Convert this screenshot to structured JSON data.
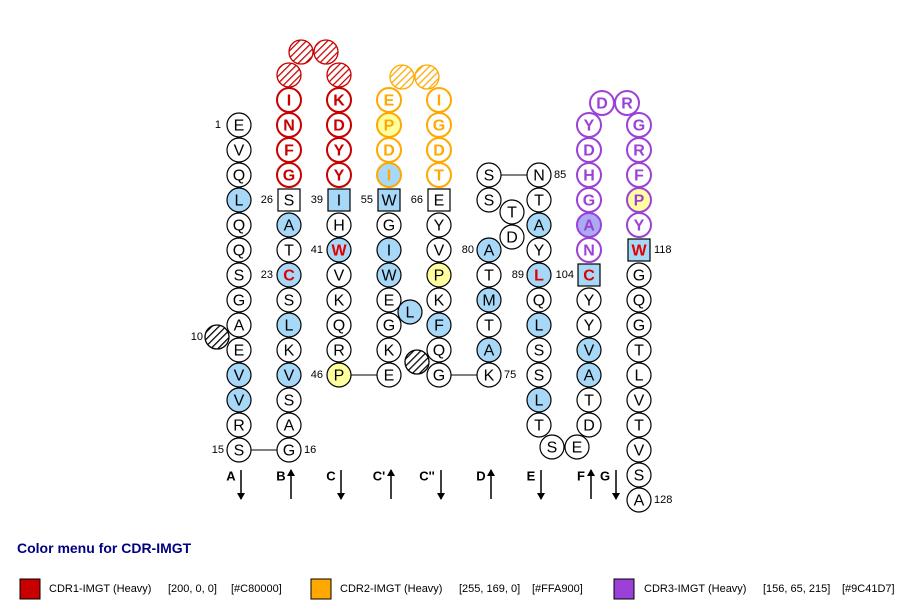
{
  "residues": [
    "E",
    "V",
    "Q",
    "L",
    "Q",
    "Q",
    "S",
    "G",
    "A",
    "E",
    "V",
    "V",
    "R",
    "S",
    "G",
    "A",
    "S",
    "V",
    "K",
    "L",
    "S",
    "C",
    "T",
    "A",
    "S",
    "G",
    "F",
    "N",
    "I",
    "K",
    "D",
    "Y",
    "Y",
    "I",
    "H",
    "W",
    "V",
    "K",
    "Q",
    "R",
    "P",
    "E",
    "K",
    "G",
    "E",
    "W",
    "I",
    "G",
    "W",
    "I",
    "D",
    "P",
    "E",
    "L",
    "I",
    "G",
    "D",
    "T",
    "E",
    "Y",
    "V",
    "P",
    "K",
    "F",
    "Q",
    "G",
    "K",
    "A",
    "T",
    "M",
    "T",
    "A",
    "D",
    "T",
    "S",
    "S",
    "N",
    "T",
    "A",
    "Y",
    "L",
    "Q",
    "L",
    "S",
    "S",
    "L",
    "T",
    "S",
    "E",
    "D",
    "T",
    "A",
    "V",
    "Y",
    "Y",
    "C",
    "N",
    "A",
    "G",
    "H",
    "D",
    "Y",
    "D",
    "R",
    "G",
    "R",
    "F",
    "P",
    "Y",
    "W",
    "G",
    "Q",
    "G",
    "T",
    "L",
    "V",
    "T",
    "V",
    "S",
    "A"
  ],
  "position_labels": [
    "1",
    "10",
    "15",
    "16",
    "23",
    "26",
    "39",
    "41",
    "46",
    "55",
    "66",
    "75",
    "80",
    "85",
    "89",
    "104",
    "118",
    "128"
  ],
  "strands": [
    "A",
    "B",
    "C",
    "C'",
    "C''",
    "D",
    "E",
    "F",
    "G"
  ],
  "legend": {
    "title": "Color menu for CDR-IMGT",
    "items": [
      {
        "name": "CDR1-IMGT (Heavy)",
        "rgb": "[200, 0, 0]",
        "hex": "[#C80000]"
      },
      {
        "name": "CDR2-IMGT (Heavy)",
        "rgb": "[255, 169, 0]",
        "hex": "[#FFA900]"
      },
      {
        "name": "CDR3-IMGT (Heavy)",
        "rgb": "[156, 65, 215]",
        "hex": "[#9C41D7]"
      }
    ]
  }
}
